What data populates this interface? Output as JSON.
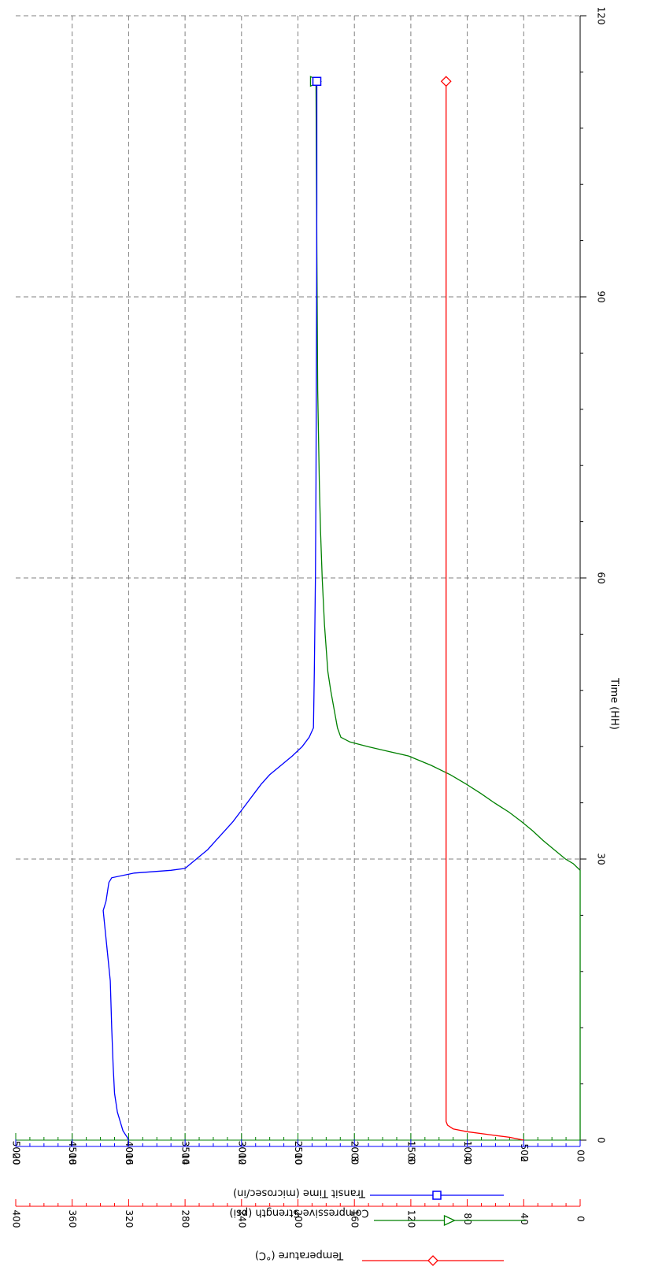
{
  "chart_data": {
    "type": "line",
    "orientation": "rotated-90",
    "xlabel": "Time (HH)",
    "xlim": [
      0,
      120
    ],
    "x_ticks": [
      "0",
      "30",
      "60",
      "90",
      "120"
    ],
    "grid": true,
    "axes": [
      {
        "id": "cs",
        "label": "Compressive Strength (psi)",
        "color": "#008000",
        "ylim": [
          0,
          5000
        ],
        "ticks": [
          "0",
          "500",
          "1000",
          "1500",
          "2000",
          "2500",
          "3000",
          "3500",
          "4000",
          "4500",
          "5000"
        ],
        "marker": "triangle"
      },
      {
        "id": "tt",
        "label": "Transit Time (microsec/in)",
        "color": "#0000ff",
        "ylim": [
          0,
          20
        ],
        "ticks": [
          "0",
          "2",
          "4",
          "6",
          "8",
          "10",
          "12",
          "14",
          "16",
          "18",
          "20"
        ],
        "marker": "square"
      },
      {
        "id": "temp",
        "label": "Temperature (°C)",
        "color": "#ff0000",
        "ylim": [
          0,
          400
        ],
        "ticks": [
          "0",
          "40",
          "80",
          "120",
          "160",
          "200",
          "240",
          "280",
          "320",
          "360",
          "400"
        ],
        "marker": "diamond"
      }
    ],
    "series": [
      {
        "name": "Compressive Strength (psi)",
        "axis": "cs",
        "color": "#008000",
        "points": [
          [
            0,
            0
          ],
          [
            28.8,
            0
          ],
          [
            29.5,
            60
          ],
          [
            30,
            130
          ],
          [
            31,
            230
          ],
          [
            32,
            330
          ],
          [
            33,
            420
          ],
          [
            34,
            520
          ],
          [
            35,
            630
          ],
          [
            36,
            760
          ],
          [
            37,
            880
          ],
          [
            38,
            1010
          ],
          [
            39,
            1150
          ],
          [
            40,
            1320
          ],
          [
            41,
            1520
          ],
          [
            41.5,
            1700
          ],
          [
            42,
            1880
          ],
          [
            42.5,
            2040
          ],
          [
            43,
            2120
          ],
          [
            44,
            2150
          ],
          [
            46,
            2180
          ],
          [
            48,
            2210
          ],
          [
            50,
            2235
          ],
          [
            55,
            2265
          ],
          [
            60,
            2285
          ],
          [
            65,
            2300
          ],
          [
            70,
            2310
          ],
          [
            80,
            2325
          ],
          [
            90,
            2330
          ],
          [
            100,
            2335
          ],
          [
            113,
            2340
          ]
        ]
      },
      {
        "name": "Transit Time (microsec/in)",
        "axis": "tt",
        "color": "#0000ff",
        "points": [
          [
            0,
            16.0
          ],
          [
            0.3,
            16.05
          ],
          [
            1,
            16.2
          ],
          [
            3,
            16.4
          ],
          [
            5,
            16.5
          ],
          [
            8,
            16.55
          ],
          [
            12,
            16.6
          ],
          [
            17,
            16.65
          ],
          [
            20,
            16.75
          ],
          [
            23,
            16.85
          ],
          [
            24.5,
            16.9
          ],
          [
            25.5,
            16.8
          ],
          [
            26.5,
            16.75
          ],
          [
            27.5,
            16.7
          ],
          [
            28,
            16.6
          ],
          [
            28.5,
            15.8
          ],
          [
            28.8,
            14.5
          ],
          [
            29,
            14.0
          ],
          [
            30,
            13.6
          ],
          [
            31,
            13.2
          ],
          [
            32,
            12.9
          ],
          [
            33,
            12.6
          ],
          [
            34,
            12.3
          ],
          [
            35,
            12.05
          ],
          [
            36,
            11.8
          ],
          [
            37,
            11.55
          ],
          [
            38,
            11.3
          ],
          [
            39,
            11.0
          ],
          [
            40,
            10.6
          ],
          [
            41,
            10.2
          ],
          [
            42,
            9.85
          ],
          [
            43,
            9.6
          ],
          [
            44,
            9.45
          ],
          [
            50,
            9.42
          ],
          [
            60,
            9.38
          ],
          [
            70,
            9.36
          ],
          [
            80,
            9.35
          ],
          [
            90,
            9.34
          ],
          [
            100,
            9.33
          ],
          [
            113,
            9.33
          ]
        ]
      },
      {
        "name": "Temperature (°C)",
        "axis": "temp",
        "color": "#ff0000",
        "points": [
          [
            0,
            40
          ],
          [
            0.3,
            50
          ],
          [
            0.6,
            65
          ],
          [
            0.9,
            80
          ],
          [
            1.2,
            90
          ],
          [
            1.6,
            94
          ],
          [
            2,
            95
          ],
          [
            10,
            95
          ],
          [
            20,
            95
          ],
          [
            30,
            95
          ],
          [
            40,
            95
          ],
          [
            50,
            95
          ],
          [
            60,
            95
          ],
          [
            70,
            95
          ],
          [
            80,
            95
          ],
          [
            90,
            95
          ],
          [
            100,
            95
          ],
          [
            113,
            95
          ]
        ]
      }
    ]
  }
}
